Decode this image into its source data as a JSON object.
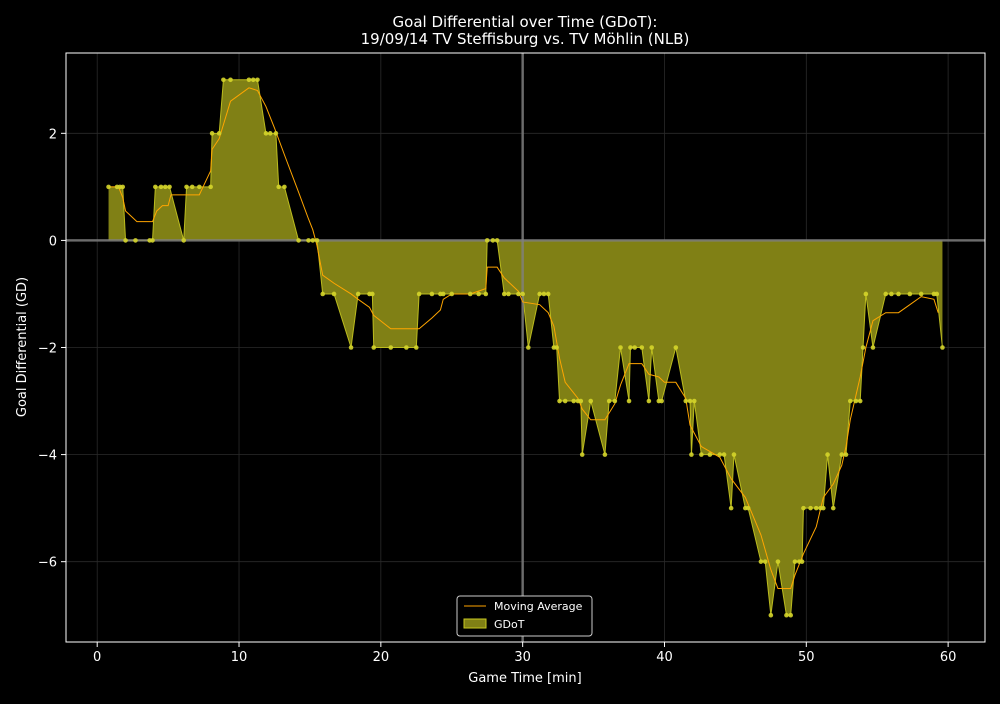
{
  "chart_data": {
    "type": "area",
    "title_line1": "Goal Differential over Time (GDoT):",
    "title_line2": "19/09/14 TV Steffisburg  vs.  TV Möhlin (NLB)",
    "xlabel": "Game Time [min]",
    "ylabel": "Goal Differential (GD)",
    "xlim": [
      -2.2,
      62.6
    ],
    "ylim": [
      -7.5,
      3.5
    ],
    "xticks": [
      0,
      10,
      20,
      30,
      40,
      50,
      60
    ],
    "yticks": [
      2,
      0,
      -2,
      -4,
      -6
    ],
    "ytick_labels": [
      "2",
      "0",
      "−2",
      "−4",
      "−6"
    ],
    "grid": true,
    "halftime_line": 30,
    "legend_position": "lower-center",
    "colors": {
      "background": "#000000",
      "gdot_fill": "#808015",
      "gdot_line": "#c8c820",
      "gdot_markers": "#d4d42a",
      "moving_average": "#ffa500",
      "text": "#ffffff",
      "reference_lines": "#808080"
    },
    "series": [
      {
        "name": "GDoT",
        "points": [
          [
            0.8,
            1
          ],
          [
            1.4,
            1
          ],
          [
            1.6,
            1
          ],
          [
            1.8,
            1
          ],
          [
            2.0,
            0
          ],
          [
            2.7,
            0
          ],
          [
            3.7,
            0
          ],
          [
            3.9,
            0
          ],
          [
            4.1,
            1
          ],
          [
            4.5,
            1
          ],
          [
            4.8,
            1
          ],
          [
            5.1,
            1
          ],
          [
            6.1,
            0
          ],
          [
            6.3,
            1
          ],
          [
            6.7,
            1
          ],
          [
            7.2,
            1
          ],
          [
            8.0,
            1
          ],
          [
            8.1,
            2
          ],
          [
            8.6,
            2
          ],
          [
            8.9,
            3
          ],
          [
            9.4,
            3
          ],
          [
            10.7,
            3
          ],
          [
            11.0,
            3
          ],
          [
            11.3,
            3
          ],
          [
            11.9,
            2
          ],
          [
            12.2,
            2
          ],
          [
            12.6,
            2
          ],
          [
            12.8,
            1
          ],
          [
            13.2,
            1
          ],
          [
            14.2,
            0
          ],
          [
            14.9,
            0
          ],
          [
            15.2,
            0
          ],
          [
            15.5,
            0
          ],
          [
            15.9,
            -1
          ],
          [
            16.7,
            -1
          ],
          [
            17.9,
            -2
          ],
          [
            18.4,
            -1
          ],
          [
            19.2,
            -1
          ],
          [
            19.4,
            -1
          ],
          [
            19.5,
            -2
          ],
          [
            20.7,
            -2
          ],
          [
            21.8,
            -2
          ],
          [
            22.5,
            -2
          ],
          [
            22.7,
            -1
          ],
          [
            23.6,
            -1
          ],
          [
            24.2,
            -1
          ],
          [
            24.4,
            -1
          ],
          [
            25.0,
            -1
          ],
          [
            26.3,
            -1
          ],
          [
            26.9,
            -1
          ],
          [
            27.4,
            -1
          ],
          [
            27.5,
            0
          ],
          [
            27.9,
            0
          ],
          [
            28.2,
            0
          ],
          [
            28.7,
            -1
          ],
          [
            29.0,
            -1
          ],
          [
            29.7,
            -1
          ],
          [
            30.0,
            -1
          ],
          [
            30.4,
            -2
          ],
          [
            31.2,
            -1
          ],
          [
            31.5,
            -1
          ],
          [
            31.8,
            -1
          ],
          [
            32.2,
            -2
          ],
          [
            32.4,
            -2
          ],
          [
            32.6,
            -3
          ],
          [
            33.0,
            -3
          ],
          [
            33.6,
            -3
          ],
          [
            33.9,
            -3
          ],
          [
            34.1,
            -3
          ],
          [
            34.2,
            -4
          ],
          [
            34.8,
            -3
          ],
          [
            35.8,
            -4
          ],
          [
            36.1,
            -3
          ],
          [
            36.5,
            -3
          ],
          [
            36.9,
            -2
          ],
          [
            37.5,
            -3
          ],
          [
            37.6,
            -2
          ],
          [
            37.9,
            -2
          ],
          [
            38.4,
            -2
          ],
          [
            38.9,
            -3
          ],
          [
            39.1,
            -2
          ],
          [
            39.6,
            -3
          ],
          [
            39.8,
            -3
          ],
          [
            40.8,
            -2
          ],
          [
            41.5,
            -3
          ],
          [
            41.8,
            -3
          ],
          [
            41.9,
            -4
          ],
          [
            42.1,
            -3
          ],
          [
            42.6,
            -4
          ],
          [
            43.2,
            -4
          ],
          [
            43.9,
            -4
          ],
          [
            44.2,
            -4
          ],
          [
            44.7,
            -5
          ],
          [
            44.9,
            -4
          ],
          [
            45.7,
            -5
          ],
          [
            45.9,
            -5
          ],
          [
            46.8,
            -6
          ],
          [
            47.1,
            -6
          ],
          [
            47.5,
            -7
          ],
          [
            48.0,
            -6
          ],
          [
            48.6,
            -7
          ],
          [
            48.9,
            -7
          ],
          [
            49.2,
            -6
          ],
          [
            49.5,
            -6
          ],
          [
            49.7,
            -6
          ],
          [
            49.8,
            -5
          ],
          [
            50.3,
            -5
          ],
          [
            50.7,
            -5
          ],
          [
            51.0,
            -5
          ],
          [
            51.2,
            -5
          ],
          [
            51.5,
            -4
          ],
          [
            51.9,
            -5
          ],
          [
            52.5,
            -4
          ],
          [
            52.8,
            -4
          ],
          [
            53.1,
            -3
          ],
          [
            53.5,
            -3
          ],
          [
            53.8,
            -3
          ],
          [
            54.0,
            -2
          ],
          [
            54.2,
            -1
          ],
          [
            54.7,
            -2
          ],
          [
            55.6,
            -1
          ],
          [
            56.0,
            -1
          ],
          [
            56.5,
            -1
          ],
          [
            57.3,
            -1
          ],
          [
            58.1,
            -1
          ],
          [
            59.0,
            -1
          ],
          [
            59.2,
            -1
          ],
          [
            59.6,
            -2
          ]
        ]
      },
      {
        "name": "Moving Average",
        "points": [
          [
            0.8,
            1
          ],
          [
            1.5,
            1
          ],
          [
            1.8,
            0.8
          ],
          [
            2.0,
            0.55
          ],
          [
            2.8,
            0.35
          ],
          [
            3.9,
            0.35
          ],
          [
            4.2,
            0.55
          ],
          [
            4.6,
            0.65
          ],
          [
            5.0,
            0.65
          ],
          [
            5.2,
            0.85
          ],
          [
            6.2,
            0.85
          ],
          [
            7.2,
            0.85
          ],
          [
            8.0,
            1.3
          ],
          [
            8.1,
            1.7
          ],
          [
            8.6,
            1.9
          ],
          [
            9.4,
            2.6
          ],
          [
            10.7,
            2.85
          ],
          [
            11.3,
            2.8
          ],
          [
            11.9,
            2.5
          ],
          [
            12.5,
            2.1
          ],
          [
            13.2,
            1.6
          ],
          [
            14.2,
            0.9
          ],
          [
            14.9,
            0.4
          ],
          [
            15.2,
            0.2
          ],
          [
            15.5,
            -0.1
          ],
          [
            15.9,
            -0.65
          ],
          [
            16.7,
            -0.8
          ],
          [
            17.9,
            -1.0
          ],
          [
            18.4,
            -1.1
          ],
          [
            19.2,
            -1.25
          ],
          [
            19.5,
            -1.4
          ],
          [
            20.7,
            -1.65
          ],
          [
            21.8,
            -1.65
          ],
          [
            22.7,
            -1.65
          ],
          [
            23.6,
            -1.45
          ],
          [
            24.2,
            -1.3
          ],
          [
            24.4,
            -1.1
          ],
          [
            25.0,
            -1.0
          ],
          [
            26.3,
            -1.0
          ],
          [
            27.4,
            -0.9
          ],
          [
            27.5,
            -0.5
          ],
          [
            28.2,
            -0.5
          ],
          [
            28.7,
            -0.7
          ],
          [
            29.7,
            -0.95
          ],
          [
            30.0,
            -1.15
          ],
          [
            31.2,
            -1.2
          ],
          [
            31.8,
            -1.35
          ],
          [
            32.2,
            -1.6
          ],
          [
            32.6,
            -2.2
          ],
          [
            33.0,
            -2.65
          ],
          [
            33.9,
            -2.95
          ],
          [
            34.2,
            -3.15
          ],
          [
            34.8,
            -3.35
          ],
          [
            35.8,
            -3.35
          ],
          [
            36.5,
            -3.05
          ],
          [
            36.9,
            -2.7
          ],
          [
            37.5,
            -2.3
          ],
          [
            38.4,
            -2.3
          ],
          [
            38.9,
            -2.5
          ],
          [
            39.6,
            -2.55
          ],
          [
            40.0,
            -2.65
          ],
          [
            40.8,
            -2.65
          ],
          [
            41.5,
            -2.95
          ],
          [
            41.8,
            -3.45
          ],
          [
            42.6,
            -3.85
          ],
          [
            43.9,
            -4.05
          ],
          [
            44.7,
            -4.45
          ],
          [
            45.7,
            -4.8
          ],
          [
            46.8,
            -5.5
          ],
          [
            47.5,
            -6.15
          ],
          [
            48.0,
            -6.5
          ],
          [
            48.9,
            -6.5
          ],
          [
            49.2,
            -6.25
          ],
          [
            49.8,
            -5.85
          ],
          [
            50.7,
            -5.35
          ],
          [
            51.2,
            -4.8
          ],
          [
            51.9,
            -4.55
          ],
          [
            52.5,
            -4.2
          ],
          [
            52.8,
            -3.85
          ],
          [
            53.1,
            -3.35
          ],
          [
            53.8,
            -2.55
          ],
          [
            54.2,
            -2.0
          ],
          [
            54.7,
            -1.5
          ],
          [
            55.6,
            -1.35
          ],
          [
            56.5,
            -1.35
          ],
          [
            57.3,
            -1.2
          ],
          [
            58.1,
            -1.05
          ],
          [
            59.0,
            -1.1
          ],
          [
            59.3,
            -1.35
          ]
        ]
      }
    ]
  }
}
